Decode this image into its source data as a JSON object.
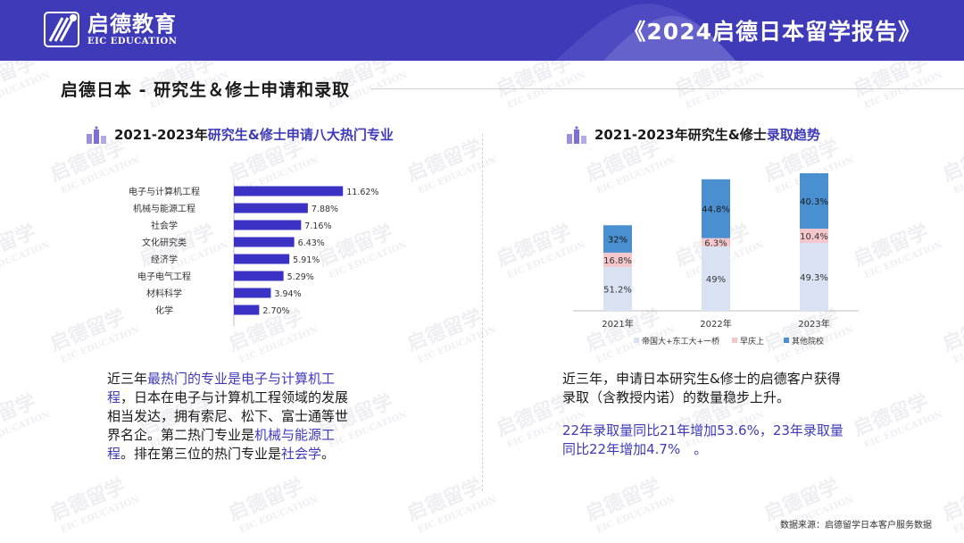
{
  "header": {
    "logo_cn": "启德教育",
    "logo_en": "EIC EDUCATION",
    "report_title": "《2024启德日本留学报告》"
  },
  "watermark": {
    "cn": "启德留学",
    "en": "EIC EDUCATION"
  },
  "page_title": "启德日本 - 研究生＆修士申请和录取",
  "left": {
    "heading_plain": "2021-2023年",
    "heading_hl": "研究生&修士申请八大热门专业",
    "desc": {
      "p1": "近三年",
      "hl1": "最热门的专业是电子与计算机工程",
      "p2": "，日本在电子与计算机工程领域的发展相当发达，拥有索尼、松下、富士通等世界名企。第二热门专业是",
      "hl2": "机械与能源工程",
      "p3": "。排在第三位的热门专业是",
      "hl3": "社会学",
      "p4": "。"
    }
  },
  "right": {
    "heading_plain": "2021-2023年研究生&修士",
    "heading_hl": "录取趋势",
    "desc1": "近三年，申请日本研究生&修士的启德客户获得录取（含教授内诺）的数量稳步上升。",
    "desc2": "22年录取量同比21年增加53.6%，23年录取量同比22年增加4.7%　。"
  },
  "source": "数据来源：启德留学日本客户服务数据",
  "colors": {
    "brand": "#3e3ab8",
    "bar": "#3b31c4",
    "seg1": "#d9e2f3",
    "seg2": "#f4c7cc",
    "seg3": "#4a8fd0"
  },
  "chart_data": [
    {
      "type": "bar",
      "orientation": "horizontal",
      "title": "2021-2023年研究生&修士申请八大热门专业",
      "categories": [
        "电子与计算机工程",
        "机械与能源工程",
        "社会学",
        "文化研究类",
        "经济学",
        "电子电气工程",
        "材料科学",
        "化学"
      ],
      "values": [
        11.62,
        7.88,
        7.16,
        6.43,
        5.91,
        5.29,
        3.94,
        2.7
      ],
      "value_labels": [
        "11.62%",
        "7.88%",
        "7.16%",
        "6.43%",
        "5.91%",
        "5.29%",
        "3.94%",
        "2.70%"
      ],
      "xlim": [
        0,
        12
      ]
    },
    {
      "type": "bar",
      "stacked": true,
      "title": "2021-2023年研究生&修士录取趋势",
      "categories": [
        "2021年",
        "2022年",
        "2023年"
      ],
      "series": [
        {
          "name": "帝国大+东工大+一桥",
          "values": [
            51.2,
            49,
            49.3
          ],
          "labels": [
            "51.2%",
            "49%",
            "49.3%"
          ]
        },
        {
          "name": "早庆上",
          "values": [
            16.8,
            6.3,
            10.4
          ],
          "labels": [
            "16.8%",
            "6.3%",
            "10.4%"
          ]
        },
        {
          "name": "其他院校",
          "values": [
            32,
            44.8,
            40.3
          ],
          "labels": [
            "32%",
            "44.8%",
            "40.3%"
          ]
        }
      ],
      "relative_totals": [
        100,
        153.6,
        160.8
      ],
      "legend_position": "bottom"
    }
  ]
}
